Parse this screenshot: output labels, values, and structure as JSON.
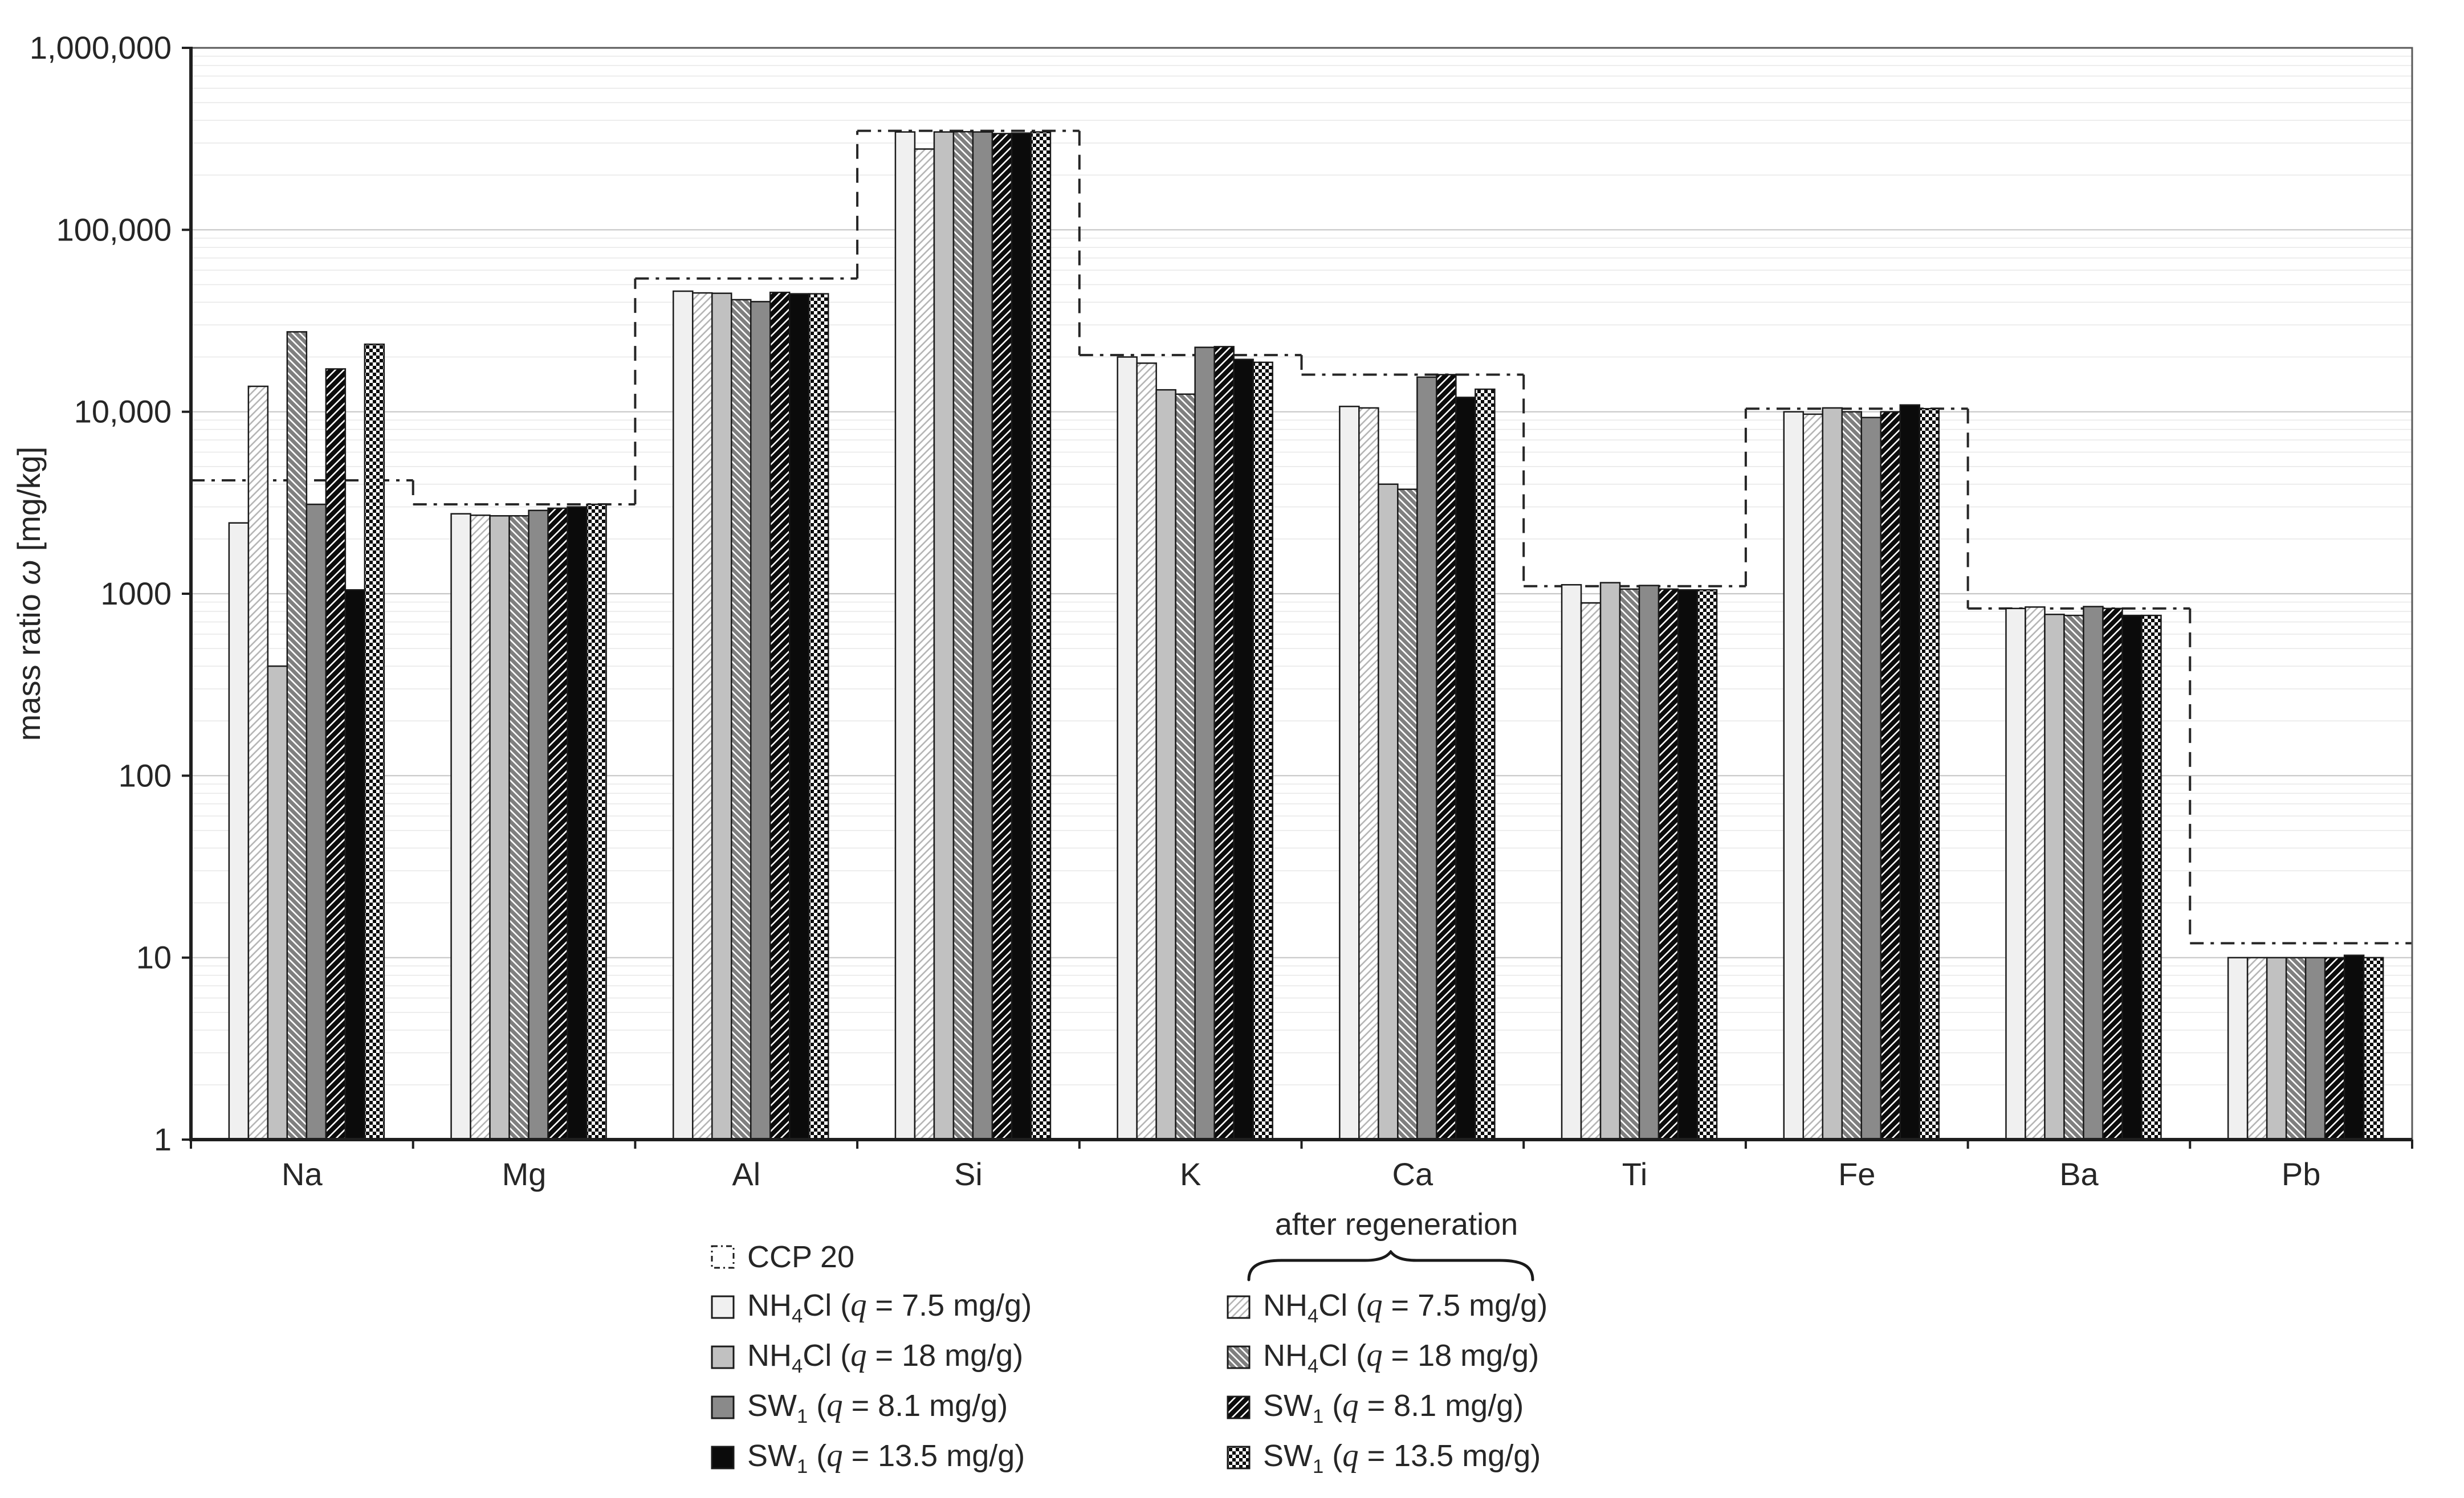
{
  "chart_data": {
    "type": "bar",
    "y_scale": "log",
    "ylim": [
      1,
      1000000
    ],
    "title": "",
    "xlabel": "",
    "ylabel": "mass ratio ω [mg/kg]",
    "grid": "horizontal-log",
    "legend_position": "bottom",
    "categories": [
      "Na",
      "Mg",
      "Al",
      "Si",
      "K",
      "Ca",
      "Ti",
      "Fe",
      "Ba",
      "Pb"
    ],
    "y_tick_labels": [
      "1",
      "10",
      "100",
      "1000",
      "10,000",
      "100,000",
      "1,000,000"
    ],
    "reference_series": {
      "name": "CCP 20",
      "style": "dash-dot-step-outline",
      "values": [
        4200,
        3100,
        54000,
        350000,
        20500,
        16000,
        1100,
        10400,
        830,
        12
      ]
    },
    "series": [
      {
        "name": "NH4Cl (q = 7.5 mg/g)",
        "group": "as loaded",
        "pattern": "solid",
        "fill": "#f0f0f0",
        "values": [
          2450,
          2750,
          46000,
          345000,
          20000,
          10700,
          1120,
          10000,
          830,
          10
        ]
      },
      {
        "name": "NH4Cl (q = 7.5 mg/g)",
        "group": "after regeneration",
        "pattern": "light-diagonal-hatch",
        "fill": "pattern",
        "values": [
          13800,
          2700,
          45000,
          278000,
          18500,
          10500,
          890,
          9700,
          845,
          10
        ]
      },
      {
        "name": "NH4Cl (q = 18 mg/g)",
        "group": "as loaded",
        "pattern": "solid",
        "fill": "#c1c1c1",
        "values": [
          400,
          2680,
          44800,
          345000,
          13200,
          4000,
          1150,
          10500,
          770,
          10
        ]
      },
      {
        "name": "NH4Cl (q = 18 mg/g)",
        "group": "after regeneration",
        "pattern": "gray-diagonal-hatch",
        "fill": "pattern",
        "values": [
          27500,
          2680,
          41300,
          346000,
          12500,
          3750,
          1060,
          10000,
          760,
          10
        ]
      },
      {
        "name": "SW1 (q = 8.1 mg/g)",
        "group": "as loaded",
        "pattern": "solid",
        "fill": "#8a8a8a",
        "values": [
          3100,
          2870,
          40300,
          345000,
          22600,
          15500,
          1110,
          9300,
          850,
          10
        ]
      },
      {
        "name": "SW1 (q = 8.1 mg/g)",
        "group": "after regeneration",
        "pattern": "black-diagonal-hatch",
        "fill": "pattern",
        "values": [
          17200,
          2950,
          45300,
          338000,
          22800,
          16000,
          1060,
          10000,
          830,
          10
        ]
      },
      {
        "name": "SW1 (q = 13.5 mg/g)",
        "group": "as loaded",
        "pattern": "solid",
        "fill": "#0b0b0b",
        "values": [
          1050,
          3000,
          44500,
          340000,
          19400,
          12000,
          1050,
          10900,
          760,
          10.3
        ]
      },
      {
        "name": "SW1 (q = 13.5 mg/g)",
        "group": "after regeneration",
        "pattern": "checker",
        "fill": "pattern",
        "values": [
          23500,
          3100,
          44500,
          345000,
          18700,
          13300,
          1050,
          10400,
          760,
          10
        ]
      }
    ]
  },
  "legend": {
    "right_heading": "after regeneration"
  },
  "colors": {
    "text": "#262626",
    "axis": "#1f1f1f",
    "border": "#595959",
    "grid_minor": "#e7e7e7",
    "grid_major": "#c6c6c6",
    "bar_outline": "#1a1a1a",
    "ref_line": "#262626",
    "hatch_light": "#b5b5b5",
    "hatch_gray": "#7f7f7f",
    "hatch_black": "#0b0b0b",
    "checker": "#0b0b0b"
  }
}
